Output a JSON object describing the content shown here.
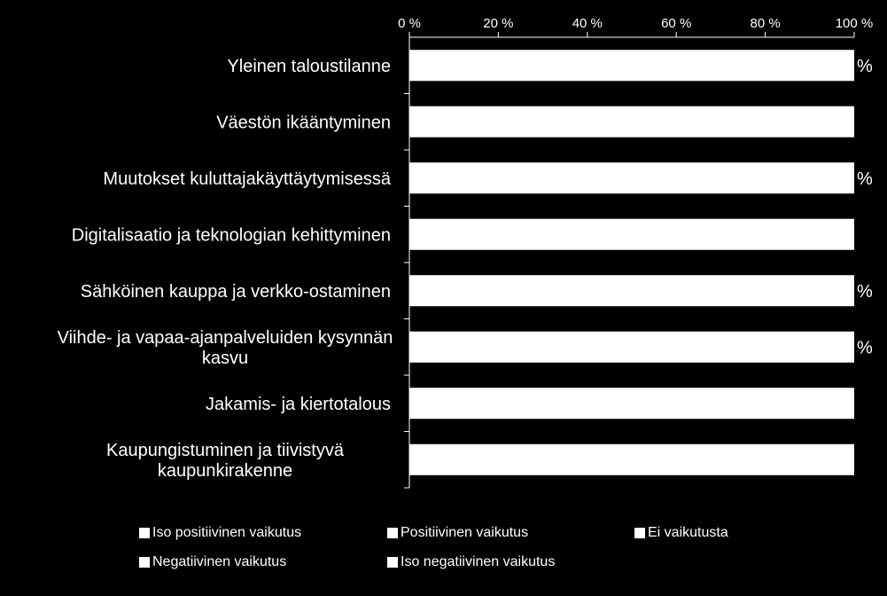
{
  "chart_data": {
    "type": "bar",
    "orientation": "horizontal",
    "stacked": "percent",
    "categories": [
      "Yleinen taloustilanne",
      "Väestön ikääntyminen",
      "Muutokset kuluttajakäyttäytymisessä",
      "Digitalisaatio ja teknologian kehittyminen",
      "Sähköinen kauppa ja verkko-ostaminen",
      "Viihde- ja vapaa-ajanpalveluiden kysynnän kasvu",
      "Jakamis- ja kiertotalous",
      "Kaupungistuminen ja tiivistyvä kaupunkirakenne"
    ],
    "category_lines": [
      [
        "Yleinen taloustilanne"
      ],
      [
        "Väestön ikääntyminen"
      ],
      [
        "Muutokset kuluttajakäyttäytymisessä"
      ],
      [
        "Digitalisaatio ja teknologian kehittyminen"
      ],
      [
        "Sähköinen kauppa ja verkko-ostaminen"
      ],
      [
        "Viihde- ja vapaa-ajanpalveluiden kysynnän",
        "kasvu"
      ],
      [
        "Jakamis- ja kiertotalous"
      ],
      [
        "Kaupungistuminen ja tiivistyvä",
        "kaupunkirakenne"
      ]
    ],
    "x_ticks": [
      "0 %",
      "20 %",
      "40 %",
      "60 %",
      "80 %",
      "100 %"
    ],
    "xlim": [
      0,
      100
    ],
    "xaxis_position": "top",
    "series": [
      {
        "name": "Iso positiivinen vaikutus",
        "values": [
          null,
          null,
          null,
          null,
          null,
          null,
          null,
          null
        ]
      },
      {
        "name": "Positiivinen vaikutus",
        "values": [
          null,
          null,
          null,
          null,
          null,
          null,
          null,
          null
        ]
      },
      {
        "name": "Ei vaikutusta",
        "values": [
          null,
          null,
          null,
          null,
          null,
          null,
          null,
          null
        ]
      },
      {
        "name": "Negatiivinen vaikutus",
        "values": [
          null,
          null,
          null,
          null,
          null,
          null,
          null,
          null
        ]
      },
      {
        "name": "Iso negatiivinen vaikutus",
        "values": [
          null,
          null,
          null,
          null,
          null,
          null,
          null,
          null
        ]
      }
    ],
    "bar_fill": "#ffffff",
    "background": "#000000",
    "grid": false,
    "legend_position": "bottom",
    "data_label_fragments": [
      {
        "row": 0,
        "text": "%"
      },
      {
        "row": 2,
        "text": "%"
      },
      {
        "row": 4,
        "text": "%"
      },
      {
        "row": 5,
        "text": "%"
      }
    ]
  },
  "legend": {
    "rows": [
      [
        "Iso positiivinen vaikutus",
        "Positiivinen vaikutus",
        "Ei vaikutusta"
      ],
      [
        "Negatiivinen vaikutus",
        "Iso negatiivinen vaikutus"
      ]
    ]
  }
}
